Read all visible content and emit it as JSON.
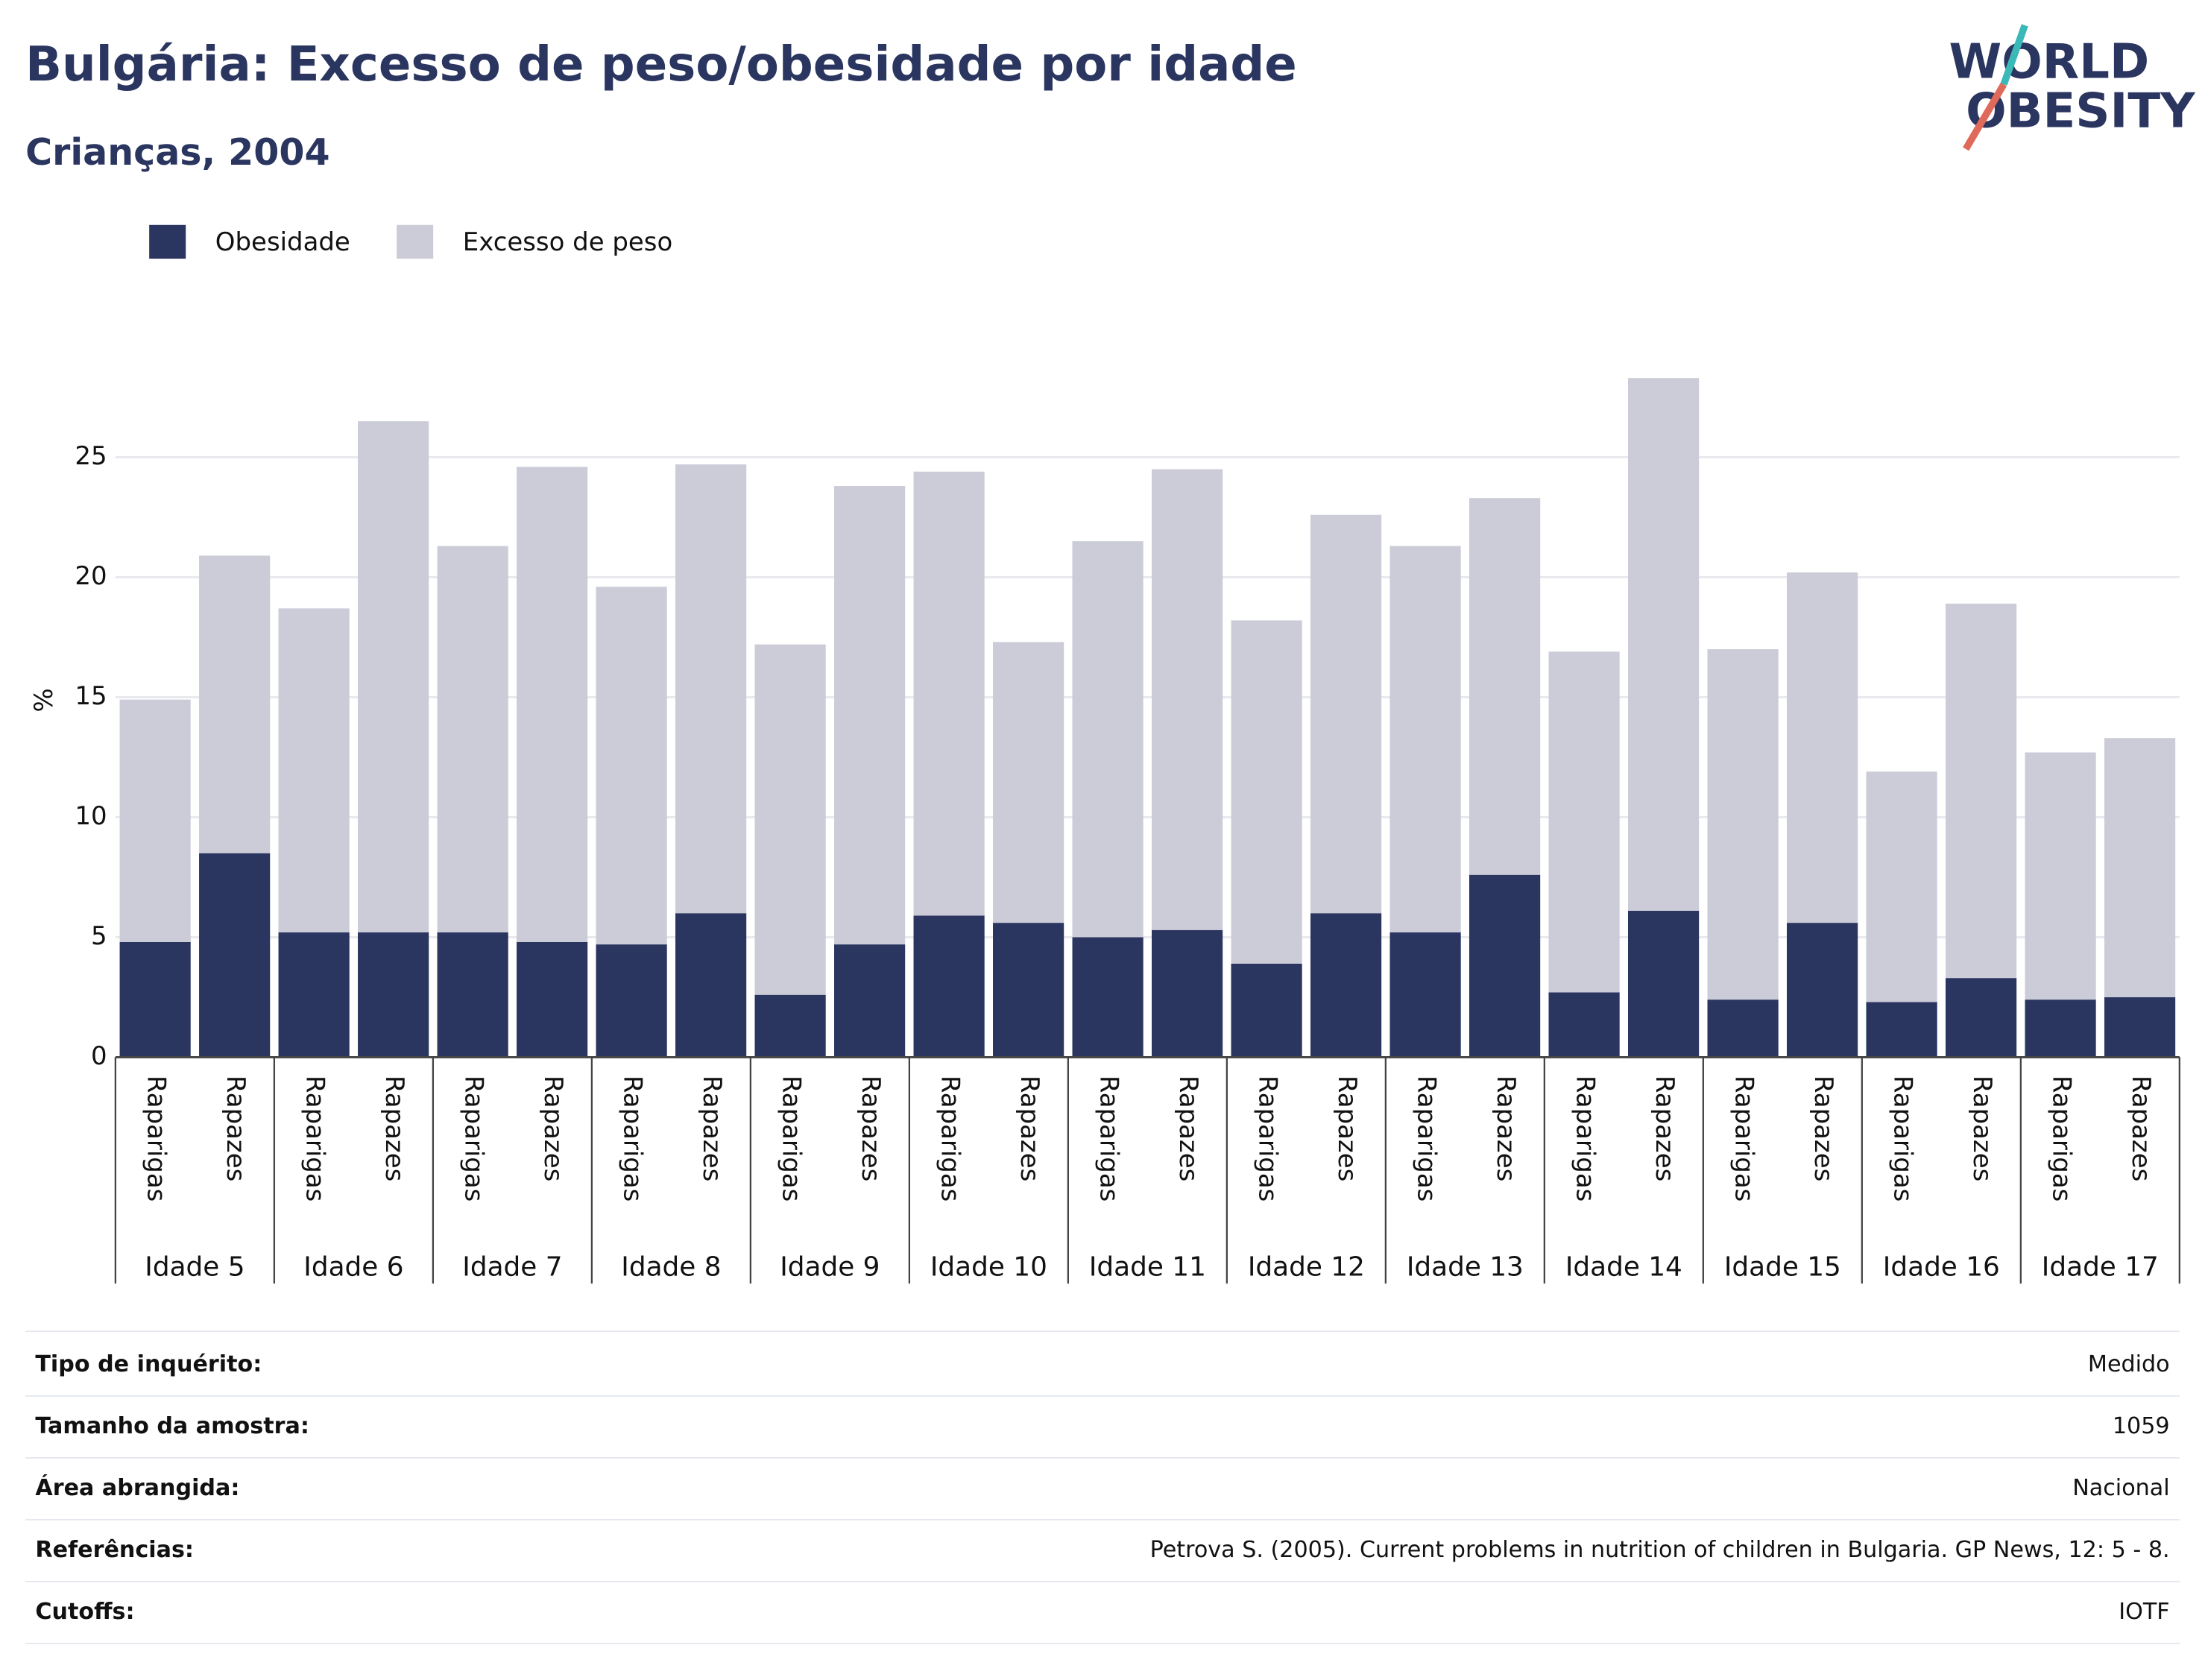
{
  "chart_data": {
    "type": "stacked_bar",
    "title": "Bulgária: Excesso de peso/obesidade por idade",
    "subtitle": "Crianças, 2004",
    "logo": [
      "WORLD",
      "OBESITY"
    ],
    "y_label": "%",
    "categories": [
      "Raparigas",
      "Rapazes",
      "Raparigas",
      "Rapazes",
      "Raparigas",
      "Rapazes",
      "Raparigas",
      "Rapazes",
      "Raparigas",
      "Rapazes",
      "Raparigas",
      "Rapazes",
      "Raparigas",
      "Rapazes",
      "Raparigas",
      "Rapazes",
      "Raparigas",
      "Rapazes",
      "Raparigas",
      "Rapazes",
      "Raparigas",
      "Rapazes",
      "Raparigas",
      "Rapazes",
      "Raparigas",
      "Rapazes"
    ],
    "groups": [
      "Idade 5",
      "Idade 6",
      "Idade 7",
      "Idade 8",
      "Idade 9",
      "Idade 10",
      "Idade 11",
      "Idade 12",
      "Idade 13",
      "Idade 14",
      "Idade 15",
      "Idade 16",
      "Idade 17"
    ],
    "series": [
      {
        "name": "Obesidade",
        "color": "#2a3560",
        "values": [
          4.8,
          8.5,
          5.2,
          5.2,
          5.2,
          4.8,
          4.7,
          6.0,
          2.6,
          4.7,
          5.9,
          5.6,
          5.0,
          5.3,
          3.9,
          6.0,
          5.2,
          7.6,
          2.7,
          6.1,
          2.4,
          5.6,
          2.3,
          3.3,
          2.4,
          2.5
        ]
      },
      {
        "name": "Excesso de peso",
        "color": "#cbccd8",
        "values": [
          10.1,
          12.4,
          13.5,
          21.3,
          16.1,
          19.8,
          14.9,
          18.7,
          14.6,
          19.1,
          18.5,
          11.7,
          16.5,
          19.2,
          14.3,
          16.6,
          16.1,
          15.7,
          14.2,
          22.2,
          14.6,
          14.6,
          9.6,
          15.6,
          10.3,
          10.8
        ]
      }
    ],
    "ylim": [
      0,
      29.7
    ],
    "yticks": [
      0,
      5,
      10,
      15,
      20,
      25
    ],
    "grid": true,
    "legend": "top-left"
  },
  "table": {
    "rows": [
      [
        "Tipo de inquérito:",
        "Medido"
      ],
      [
        "Tamanho da amostra:",
        "1059"
      ],
      [
        "Área abrangida:",
        "Nacional"
      ],
      [
        "Referências:",
        "Petrova S. (2005). Current problems in nutrition of children in Bulgaria. GP News, 12: 5 - 8."
      ],
      [
        "Cutoffs:",
        "IOTF"
      ]
    ]
  }
}
